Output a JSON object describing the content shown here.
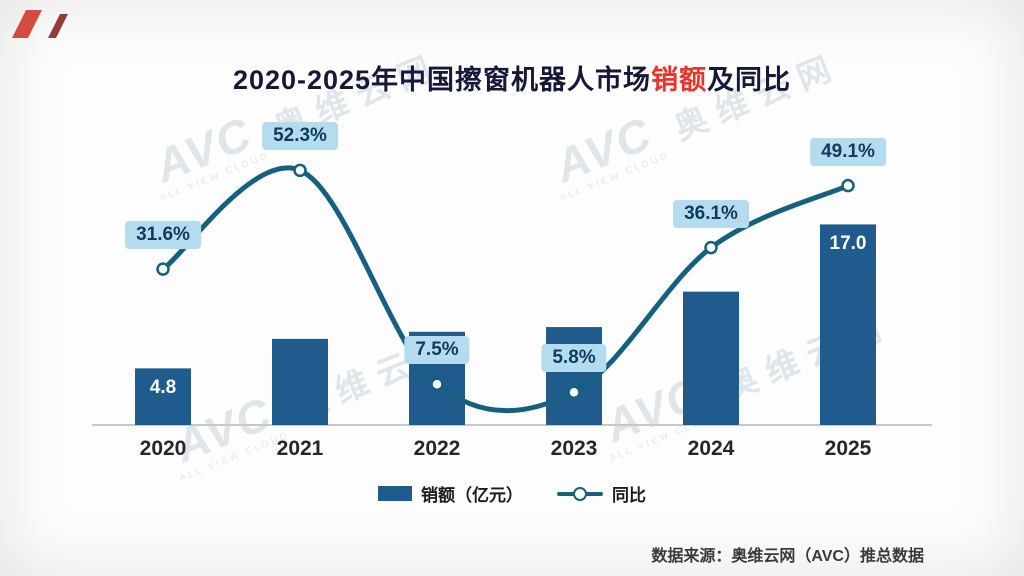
{
  "title_parts": {
    "prefix": "2020-2025年中国擦窗机器人市场",
    "highlight": "销额",
    "suffix": "及同比"
  },
  "legend": {
    "bar_label": "销额（亿元）",
    "line_label": "同比"
  },
  "footer": {
    "source": "数据来源：奥维云网（AVC）推总数据"
  },
  "watermark": {
    "logo": "AVC",
    "name": "奥维云网",
    "sub": "ALL VIEW CLOUD"
  },
  "colors": {
    "bar": "#1f5c8d",
    "line": "#16607f",
    "label_box": "#b5dcee",
    "title_highlight": "#e8352a"
  },
  "chart_data": {
    "type": "bar",
    "title": "2020-2025年中国擦窗机器人市场销额及同比",
    "categories": [
      "2020",
      "2021",
      "2022",
      "2023",
      "2024",
      "2025"
    ],
    "series": [
      {
        "name": "销额（亿元）",
        "type": "bar",
        "color": "#1f5c8d",
        "values": [
          4.8,
          7.3,
          7.9,
          8.3,
          11.3,
          17.0
        ],
        "labeled_values": [
          "4.8",
          null,
          null,
          null,
          null,
          "17.0"
        ]
      },
      {
        "name": "同比",
        "type": "line",
        "color": "#16607f",
        "unit": "%",
        "values": [
          31.6,
          52.3,
          7.5,
          5.8,
          36.1,
          49.1
        ],
        "labels": [
          "31.6%",
          "52.3%",
          "7.5%",
          "5.8%",
          "36.1%",
          "49.1%"
        ]
      }
    ],
    "ylim_bar": [
      0,
      18
    ],
    "ylim_line": [
      0,
      60
    ],
    "grid": false,
    "legend_position": "bottom"
  }
}
